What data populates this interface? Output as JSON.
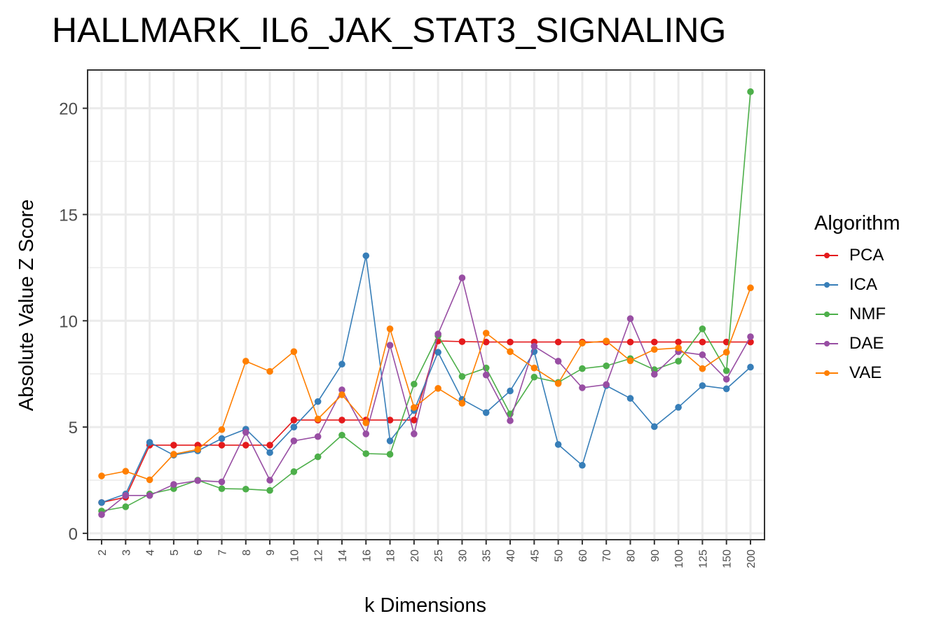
{
  "chart_data": {
    "type": "line",
    "title": "HALLMARK_IL6_JAK_STAT3_SIGNALING",
    "xlabel": "k Dimensions",
    "ylabel": "Absolute Value Z Score",
    "categories": [
      "2",
      "3",
      "4",
      "5",
      "6",
      "7",
      "8",
      "9",
      "10",
      "12",
      "14",
      "16",
      "18",
      "20",
      "25",
      "30",
      "35",
      "40",
      "45",
      "50",
      "60",
      "70",
      "80",
      "90",
      "100",
      "125",
      "150",
      "200"
    ],
    "ylim": [
      -0.3,
      21.8
    ],
    "yticks": [
      0,
      5,
      10,
      15,
      20
    ],
    "grid": true,
    "legend_title": "Algorithm",
    "legend_position": "right",
    "series": [
      {
        "name": "PCA",
        "color": "#E41A1C",
        "values": [
          1.45,
          1.7,
          4.15,
          4.15,
          4.15,
          4.15,
          4.15,
          4.15,
          5.33,
          5.33,
          5.33,
          5.33,
          5.33,
          5.33,
          9.05,
          9.02,
          9.0,
          9.0,
          9.0,
          9.0,
          9.0,
          9.0,
          9.0,
          9.0,
          9.0,
          9.0,
          9.0,
          9.0
        ]
      },
      {
        "name": "ICA",
        "color": "#377EB8",
        "values": [
          1.45,
          1.85,
          4.28,
          3.68,
          3.88,
          4.46,
          4.9,
          3.8,
          5.0,
          6.2,
          7.96,
          13.06,
          4.35,
          5.78,
          8.52,
          6.3,
          5.68,
          6.7,
          8.55,
          4.18,
          3.2,
          6.95,
          6.35,
          5.02,
          5.93,
          6.95,
          6.8,
          7.82
        ]
      },
      {
        "name": "NMF",
        "color": "#4DAF4A",
        "values": [
          1.05,
          1.25,
          1.85,
          2.1,
          2.5,
          2.1,
          2.08,
          2.02,
          2.9,
          3.6,
          4.62,
          3.75,
          3.72,
          7.02,
          9.3,
          7.38,
          7.78,
          5.62,
          7.35,
          7.1,
          7.75,
          7.88,
          8.22,
          7.7,
          8.1,
          9.62,
          7.65,
          20.78
        ]
      },
      {
        "name": "DAE",
        "color": "#984EA3",
        "values": [
          0.88,
          1.78,
          1.78,
          2.3,
          2.48,
          2.42,
          4.75,
          2.5,
          4.35,
          4.55,
          6.75,
          4.68,
          8.85,
          4.68,
          9.38,
          12.02,
          7.45,
          5.3,
          8.8,
          8.1,
          6.85,
          7.0,
          10.1,
          7.48,
          8.55,
          8.4,
          7.25,
          9.25
        ]
      },
      {
        "name": "VAE",
        "color": "#FF7F00",
        "values": [
          2.7,
          2.92,
          2.52,
          3.72,
          3.95,
          4.88,
          8.1,
          7.62,
          8.55,
          5.38,
          6.52,
          5.2,
          9.62,
          5.92,
          6.82,
          6.12,
          9.42,
          8.55,
          7.78,
          7.05,
          8.95,
          9.05,
          8.12,
          8.65,
          8.72,
          7.75,
          8.52,
          11.55
        ]
      }
    ]
  }
}
